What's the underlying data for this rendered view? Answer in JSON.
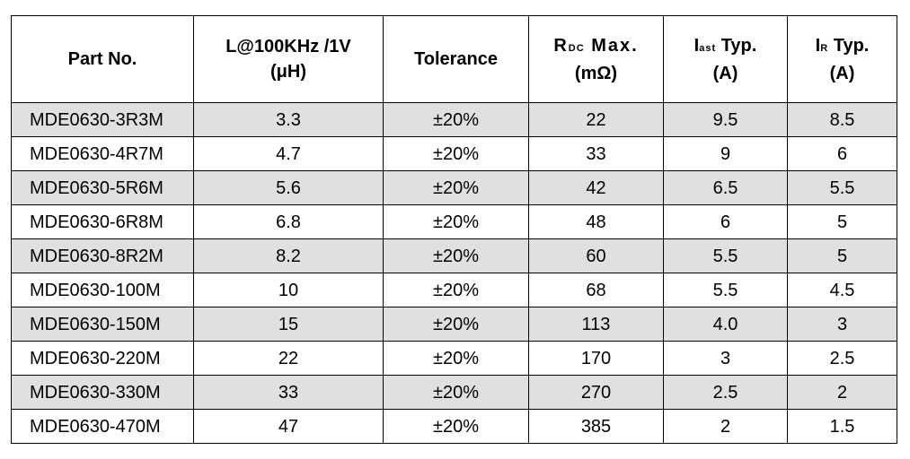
{
  "header": {
    "part_no": "Part No.",
    "inductance": {
      "line1": "L@100KHz /1V",
      "line2": "(μH)"
    },
    "tolerance": "Tolerance",
    "rdc": {
      "symbol": "R",
      "subscript": "DC",
      "label": " Max.",
      "unit": "(mΩ)"
    },
    "isat": {
      "symbol": "I",
      "subscript": "ast",
      "label": " Typ.",
      "unit": "(A)"
    },
    "ir": {
      "symbol": "I",
      "subscript": "R",
      "label": " Typ.",
      "unit": "(A)"
    }
  },
  "rows": [
    {
      "part": "MDE0630-3R3M",
      "inductance": "3.3",
      "tolerance": "±20%",
      "rdc": "22",
      "isat": "9.5",
      "ir": "8.5"
    },
    {
      "part": "MDE0630-4R7M",
      "inductance": "4.7",
      "tolerance": "±20%",
      "rdc": "33",
      "isat": "9",
      "ir": "6"
    },
    {
      "part": "MDE0630-5R6M",
      "inductance": "5.6",
      "tolerance": "±20%",
      "rdc": "42",
      "isat": "6.5",
      "ir": "5.5"
    },
    {
      "part": "MDE0630-6R8M",
      "inductance": "6.8",
      "tolerance": "±20%",
      "rdc": "48",
      "isat": "6",
      "ir": "5"
    },
    {
      "part": "MDE0630-8R2M",
      "inductance": "8.2",
      "tolerance": "±20%",
      "rdc": "60",
      "isat": "5.5",
      "ir": "5"
    },
    {
      "part": "MDE0630-100M",
      "inductance": "10",
      "tolerance": "±20%",
      "rdc": "68",
      "isat": "5.5",
      "ir": "4.5"
    },
    {
      "part": "MDE0630-150M",
      "inductance": "15",
      "tolerance": "±20%",
      "rdc": "113",
      "isat": "4.0",
      "ir": "3"
    },
    {
      "part": "MDE0630-220M",
      "inductance": "22",
      "tolerance": "±20%",
      "rdc": "170",
      "isat": "3",
      "ir": "2.5"
    },
    {
      "part": "MDE0630-330M",
      "inductance": "33",
      "tolerance": "±20%",
      "rdc": "270",
      "isat": "2.5",
      "ir": "2"
    },
    {
      "part": "MDE0630-470M",
      "inductance": "47",
      "tolerance": "±20%",
      "rdc": "385",
      "isat": "2",
      "ir": "1.5"
    }
  ]
}
